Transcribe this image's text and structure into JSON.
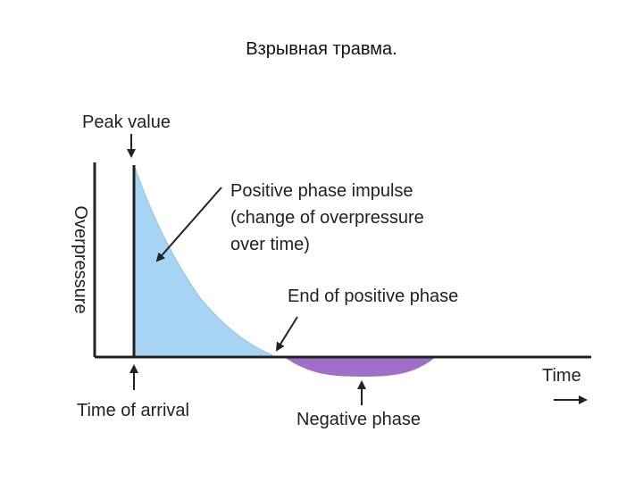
{
  "slide": {
    "title": "Взрывная травма."
  },
  "diagram": {
    "peak_label": "Peak value",
    "y_axis_label": "Overpressure",
    "impulse_label_lines": [
      "Positive phase impulse",
      "(change of overpressure",
      "over time)"
    ],
    "end_positive_label": "End of positive phase",
    "time_label": "Time",
    "arrival_label": "Time of arrival",
    "negative_label": "Negative phase",
    "colors": {
      "positive_fill": "#a7d4f2",
      "negative_fill": "#a070c8",
      "axis": "#222222"
    }
  }
}
